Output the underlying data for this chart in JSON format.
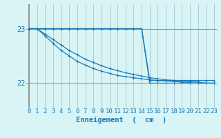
{
  "background_color": "#d8f4f4",
  "grid_color": "#a0b8cc",
  "line_color": "#1a7ab8",
  "xlabel": "Enneigement  (  cm  )",
  "xlim": [
    -0.3,
    23.3
  ],
  "ylim": [
    21.55,
    23.45
  ],
  "xticks": [
    0,
    1,
    2,
    3,
    4,
    5,
    6,
    7,
    8,
    9,
    10,
    11,
    12,
    13,
    14,
    15,
    16,
    17,
    18,
    19,
    20,
    21,
    22,
    23
  ],
  "yticks": [
    22,
    23
  ],
  "line1_x": [
    0,
    1,
    2,
    3,
    4,
    5,
    6,
    7,
    8,
    9,
    10,
    11,
    12,
    13,
    14,
    15,
    16,
    17,
    18,
    19,
    20,
    21,
    22,
    23
  ],
  "line1_y": [
    23,
    23,
    23,
    23,
    23,
    23,
    23,
    23,
    23,
    23,
    23,
    23,
    23,
    23,
    23,
    22,
    22,
    22,
    22,
    22,
    22,
    22,
    22,
    22
  ],
  "line2_x": [
    0,
    1,
    2,
    3,
    4,
    5,
    6,
    7,
    8,
    9,
    10,
    11,
    12,
    13,
    14,
    15,
    16,
    17,
    18,
    19,
    20,
    21,
    22,
    23
  ],
  "line2_y": [
    23,
    23,
    22.87,
    22.73,
    22.6,
    22.5,
    22.4,
    22.33,
    22.27,
    22.22,
    22.18,
    22.14,
    22.12,
    22.1,
    22.08,
    22.06,
    22.05,
    22.04,
    22.03,
    22.02,
    22.01,
    22.0,
    22.0,
    22.0
  ],
  "line3_x": [
    0,
    1,
    2,
    3,
    4,
    5,
    6,
    7,
    8,
    9,
    10,
    11,
    12,
    13,
    14,
    15,
    16,
    17,
    18,
    19,
    20,
    21,
    22,
    23
  ],
  "line3_y": [
    23,
    23,
    22.9,
    22.8,
    22.7,
    22.6,
    22.52,
    22.44,
    22.38,
    22.32,
    22.27,
    22.23,
    22.19,
    22.16,
    22.13,
    22.1,
    22.08,
    22.06,
    22.05,
    22.04,
    22.03,
    22.02,
    22.0,
    22.0
  ],
  "line4_x": [
    0,
    1,
    2,
    3,
    4,
    5,
    6,
    7,
    8,
    9,
    10,
    11,
    12,
    13,
    14,
    15,
    16,
    17,
    18,
    19,
    20,
    21,
    22,
    23
  ],
  "line4_y": [
    23,
    23,
    23,
    23,
    23,
    23,
    23,
    23,
    23,
    23,
    23,
    23,
    23,
    23,
    23,
    22.05,
    22.05,
    22.05,
    22.05,
    22.05,
    22.05,
    22.05,
    22.05,
    22.05
  ],
  "vline_color": "#888888",
  "hline_color": "#cc5555",
  "tick_font_size": 6.5,
  "xlabel_font_size": 7.5
}
